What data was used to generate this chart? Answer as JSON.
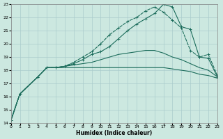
{
  "xlabel": "Humidex (Indice chaleur)",
  "bg_color": "#cce8e0",
  "grid_color": "#aacccc",
  "line_color": "#1a6b5a",
  "xlim": [
    0,
    23
  ],
  "ylim": [
    14,
    23
  ],
  "yticks": [
    14,
    15,
    16,
    17,
    18,
    19,
    20,
    21,
    22,
    23
  ],
  "xticks": [
    0,
    1,
    2,
    3,
    4,
    5,
    6,
    7,
    8,
    9,
    10,
    11,
    12,
    13,
    14,
    15,
    16,
    17,
    18,
    19,
    20,
    21,
    22,
    23
  ],
  "line1_x": [
    0,
    1,
    3,
    4,
    5,
    6,
    7,
    8,
    9,
    10,
    11,
    12,
    13,
    14,
    15,
    16,
    17,
    18,
    19,
    20,
    21,
    22,
    23
  ],
  "line1_y": [
    14.2,
    16.2,
    17.5,
    18.2,
    18.2,
    18.3,
    18.6,
    19.0,
    19.4,
    20.0,
    20.7,
    21.2,
    21.7,
    22.0,
    22.5,
    22.8,
    22.4,
    21.8,
    21.2,
    19.5,
    19.0,
    19.2,
    17.6
  ],
  "line2_x": [
    0,
    1,
    3,
    4,
    5,
    6,
    7,
    8,
    9,
    10,
    11,
    12,
    13,
    14,
    15,
    16,
    17,
    18,
    19,
    20,
    21,
    22,
    23
  ],
  "line2_y": [
    14.2,
    16.2,
    17.5,
    18.2,
    18.2,
    18.3,
    18.5,
    18.8,
    19.2,
    19.4,
    19.8,
    20.4,
    21.0,
    21.5,
    21.9,
    22.3,
    23.0,
    22.8,
    21.3,
    21.1,
    19.0,
    18.9,
    17.5
  ],
  "line3_x": [
    0,
    1,
    3,
    4,
    5,
    6,
    7,
    8,
    9,
    10,
    11,
    12,
    13,
    14,
    15,
    16,
    17,
    18,
    19,
    20,
    21,
    22,
    23
  ],
  "line3_y": [
    14.2,
    16.2,
    17.5,
    18.2,
    18.2,
    18.3,
    18.4,
    18.5,
    18.6,
    18.8,
    19.0,
    19.2,
    19.3,
    19.4,
    19.5,
    19.5,
    19.3,
    19.0,
    18.8,
    18.5,
    18.2,
    18.0,
    17.5
  ],
  "line4_x": [
    0,
    1,
    3,
    4,
    5,
    6,
    7,
    8,
    9,
    10,
    11,
    12,
    13,
    14,
    15,
    16,
    17,
    18,
    19,
    20,
    21,
    22,
    23
  ],
  "line4_y": [
    14.2,
    16.2,
    17.5,
    18.2,
    18.2,
    18.2,
    18.2,
    18.2,
    18.2,
    18.2,
    18.2,
    18.2,
    18.2,
    18.2,
    18.2,
    18.2,
    18.2,
    18.1,
    18.0,
    17.9,
    17.7,
    17.6,
    17.4
  ]
}
